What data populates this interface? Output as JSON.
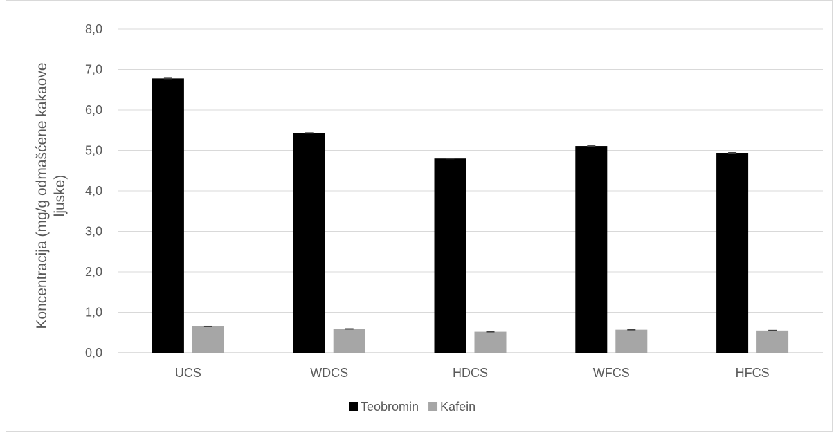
{
  "chart_data": {
    "type": "bar",
    "title": "",
    "xlabel": "",
    "ylabel": "Koncentracija (mg/g odmašćene kakaove ljuske)",
    "ylabel_lines": [
      "Koncentracija (mg/g odmašćene kakaove",
      "ljuske)"
    ],
    "categories": [
      "UCS",
      "WDCS",
      "HDCS",
      "WFCS",
      "HFCS"
    ],
    "series": [
      {
        "name": "Teobromin",
        "color": "#000000",
        "values": [
          6.78,
          5.43,
          4.8,
          5.11,
          4.94
        ]
      },
      {
        "name": "Kafein",
        "color": "#a6a6a6",
        "values": [
          0.65,
          0.59,
          0.52,
          0.57,
          0.55
        ]
      }
    ],
    "ylim": [
      0,
      8
    ],
    "yticks": [
      "0,0",
      "1,0",
      "2,0",
      "3,0",
      "4,0",
      "5,0",
      "6,0",
      "7,0",
      "8,0"
    ],
    "grid": true,
    "error_bars": true,
    "legend_position": "bottom"
  }
}
